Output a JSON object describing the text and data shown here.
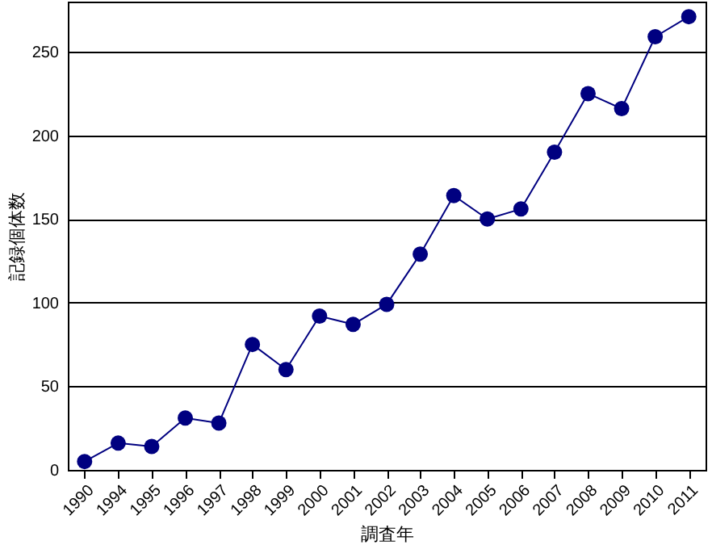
{
  "chart_data": {
    "type": "line",
    "xlabel": "調査年",
    "ylabel": "記録個体数",
    "categories": [
      "1990",
      "1994",
      "1995",
      "1996",
      "1997",
      "1998",
      "1999",
      "2000",
      "2001",
      "2002",
      "2003",
      "2004",
      "2005",
      "2006",
      "2007",
      "2008",
      "2009",
      "2010",
      "2011"
    ],
    "series": [
      {
        "color": "#000080",
        "values": [
          5,
          16,
          14,
          31,
          28,
          75,
          60,
          92,
          87,
          99,
          129,
          164,
          150,
          156,
          190,
          225,
          216,
          259,
          271
        ]
      }
    ],
    "ylim": [
      0,
      280
    ],
    "yticks": [
      0,
      50,
      100,
      150,
      200,
      250
    ],
    "grid": "y",
    "marker": "circle",
    "line_style": "solid",
    "legend": false
  }
}
